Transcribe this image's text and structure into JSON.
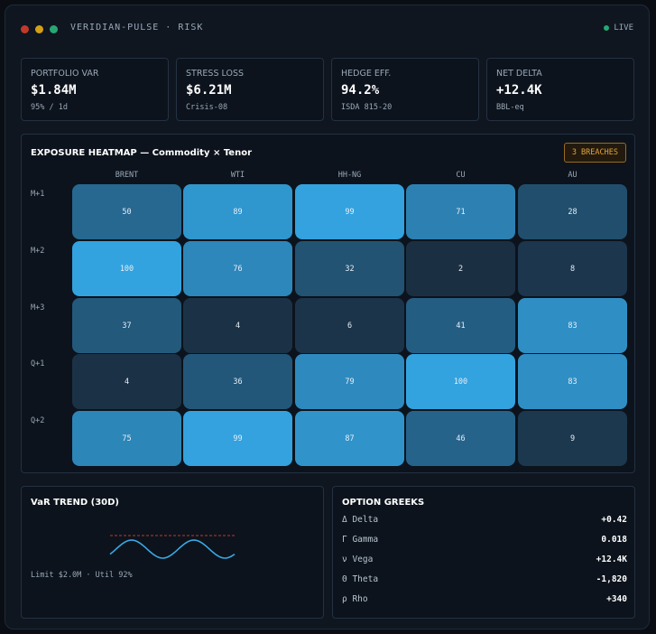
{
  "window": {
    "title": "VERIDIAN-PULSE · RISK",
    "status": "LIVE"
  },
  "kpis": [
    {
      "label": "PORTFOLIO VAR",
      "value": "$1.84M",
      "sub": "95% / 1d"
    },
    {
      "label": "STRESS LOSS",
      "value": "$6.21M",
      "sub": "Crisis-08"
    },
    {
      "label": "HEDGE EFF.",
      "value": "94.2%",
      "sub": "ISDA 815-20"
    },
    {
      "label": "NET DELTA",
      "value": "+12.4K",
      "sub": "BBL-eq"
    }
  ],
  "heatmap": {
    "title": "EXPOSURE HEATMAP — Commodity × Tenor",
    "badge": "3 BREACHES",
    "columns": [
      "BRENT",
      "WTI",
      "HH-NG",
      "CU",
      "AU"
    ],
    "rows": [
      "M+1",
      "M+2",
      "M+3",
      "Q+1",
      "Q+2"
    ],
    "values": [
      [
        50,
        89,
        99,
        71,
        28
      ],
      [
        100,
        76,
        32,
        2,
        8
      ],
      [
        37,
        4,
        6,
        41,
        83
      ],
      [
        4,
        36,
        79,
        100,
        83
      ],
      [
        75,
        99,
        87,
        46,
        9
      ]
    ],
    "cells": [
      [
        "50",
        "89",
        "99",
        "71",
        "28"
      ],
      [
        "100",
        "76",
        "32",
        "2",
        "8"
      ],
      [
        "37",
        "4",
        "6",
        "41",
        "83"
      ],
      [
        "4",
        "36",
        "79",
        "100",
        "83"
      ],
      [
        "75",
        "99",
        "87",
        "46",
        "9"
      ]
    ],
    "color_low": "#1a2d40",
    "color_high": "#33a3e0"
  },
  "trend": {
    "title": "VaR TREND (30D)",
    "footer": "Limit $2.0M · Util 92%",
    "line_color": "#3aa8e6",
    "limit_color": "#c0392b"
  },
  "greeks": {
    "title": "OPTION GREEKS",
    "rows": [
      {
        "name": "Δ Delta",
        "value": "+0.42"
      },
      {
        "name": "Γ Gamma",
        "value": "0.018"
      },
      {
        "name": "ν Vega",
        "value": "+12.4K"
      },
      {
        "name": "Θ Theta",
        "value": "-1,820"
      },
      {
        "name": "ρ Rho",
        "value": "+340"
      }
    ]
  }
}
